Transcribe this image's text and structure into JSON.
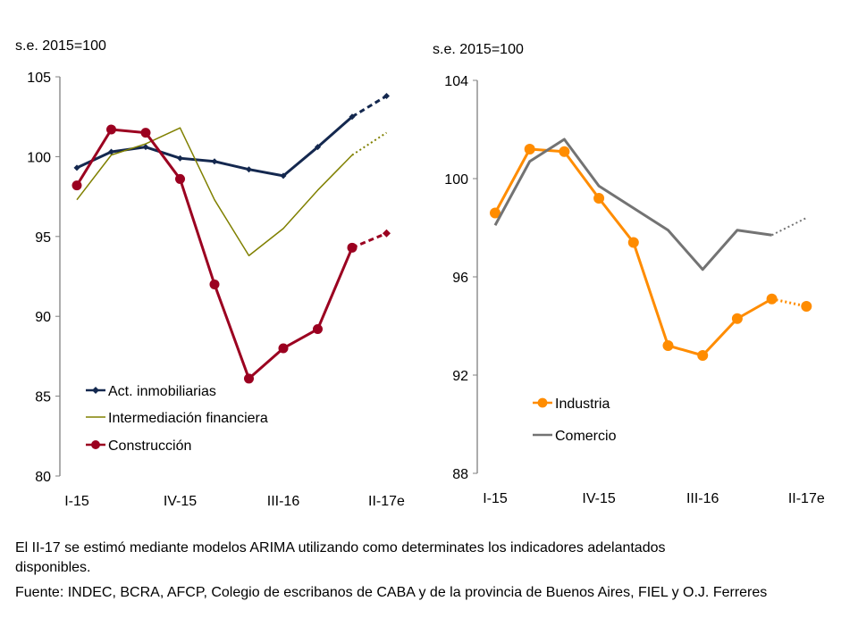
{
  "chart_data": [
    {
      "type": "line",
      "ylabel": "s.e. 2015=100",
      "ylim": [
        80,
        105
      ],
      "yticks": [
        80,
        85,
        90,
        95,
        100,
        105
      ],
      "categories": [
        "I-15",
        "II-15",
        "III-15",
        "IV-15",
        "I-16",
        "II-16",
        "III-16",
        "IV-16",
        "I-17",
        "II-17e"
      ],
      "xtick_labels": [
        "I-15",
        "IV-15",
        "III-16",
        "II-17e"
      ],
      "legend_position": "bottom-left",
      "grid": false,
      "series": [
        {
          "name": "Act. inmobiliarias",
          "color": "#14284f",
          "marker": "diamond",
          "estimated_last": true,
          "values": [
            99.3,
            100.3,
            100.6,
            99.9,
            99.7,
            99.2,
            98.8,
            100.6,
            102.5,
            103.8
          ]
        },
        {
          "name": "Intermediación financiera",
          "color": "#808000",
          "marker": "none",
          "estimated_last": true,
          "values": [
            97.3,
            100.1,
            100.8,
            101.8,
            97.3,
            93.8,
            95.5,
            97.9,
            100.1,
            101.5
          ]
        },
        {
          "name": "Construcción",
          "color": "#9b0020",
          "marker": "circle",
          "estimated_last": true,
          "values": [
            98.2,
            101.7,
            101.5,
            98.6,
            92.0,
            86.1,
            88.0,
            89.2,
            94.3,
            95.2
          ]
        }
      ]
    },
    {
      "type": "line",
      "ylabel": "s.e. 2015=100",
      "ylim": [
        88,
        104
      ],
      "yticks": [
        88,
        92,
        96,
        100,
        104
      ],
      "categories": [
        "I-15",
        "II-15",
        "III-15",
        "IV-15",
        "I-16",
        "II-16",
        "III-16",
        "IV-16",
        "I-17",
        "II-17e"
      ],
      "xtick_labels": [
        "I-15",
        "IV-15",
        "III-16",
        "II-17e"
      ],
      "legend_position": "bottom-left",
      "grid": false,
      "series": [
        {
          "name": "Industria",
          "color": "#ff8c00",
          "marker": "circle",
          "estimated_last": true,
          "values": [
            98.6,
            101.2,
            101.1,
            99.2,
            97.4,
            93.2,
            92.8,
            94.3,
            95.1,
            94.8
          ]
        },
        {
          "name": "Comercio",
          "color": "#737373",
          "marker": "none",
          "estimated_last": true,
          "values": [
            98.1,
            100.7,
            101.6,
            99.7,
            98.8,
            97.9,
            96.3,
            97.9,
            97.7,
            98.4
          ]
        }
      ]
    }
  ],
  "footnote": {
    "line1": "El II-17 se estimó mediante modelos ARIMA utilizando como determinates los indicadores adelantados",
    "line2": "disponibles.",
    "line3": "Fuente: INDEC, BCRA, AFCP, Colegio de escribanos de CABA y de la provincia de Buenos Aires, FIEL y O.J. Ferreres"
  }
}
